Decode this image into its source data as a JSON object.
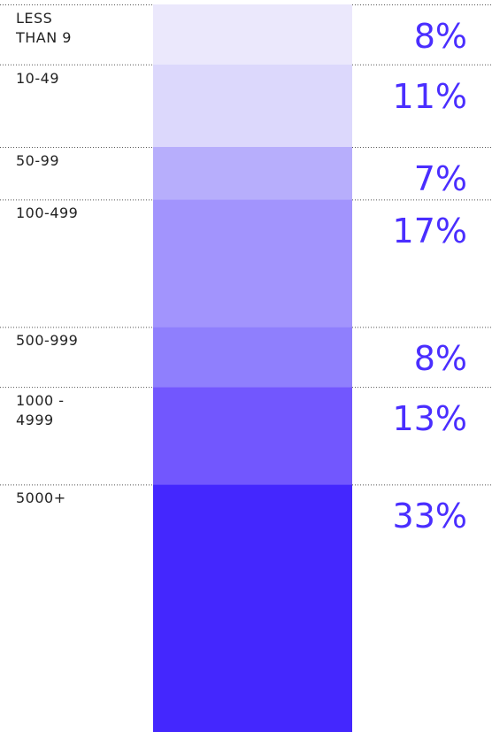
{
  "chart_data": {
    "type": "stacked-bar",
    "categories": [
      "LESS THAN 9",
      "10-49",
      "50-99",
      "100-499",
      "500-999",
      "1000 - 4999",
      "5000+"
    ],
    "values": [
      8,
      11,
      7,
      17,
      8,
      13,
      33
    ],
    "value_labels": [
      "8%",
      "11%",
      "7%",
      "17%",
      "8%",
      "13%",
      "33%"
    ],
    "colors": [
      "#ebe8fc",
      "#dcd8fc",
      "#b7aefc",
      "#a294fd",
      "#8f7ffd",
      "#7257fe",
      "#4427fe"
    ],
    "label_color": "#4a2eff"
  }
}
